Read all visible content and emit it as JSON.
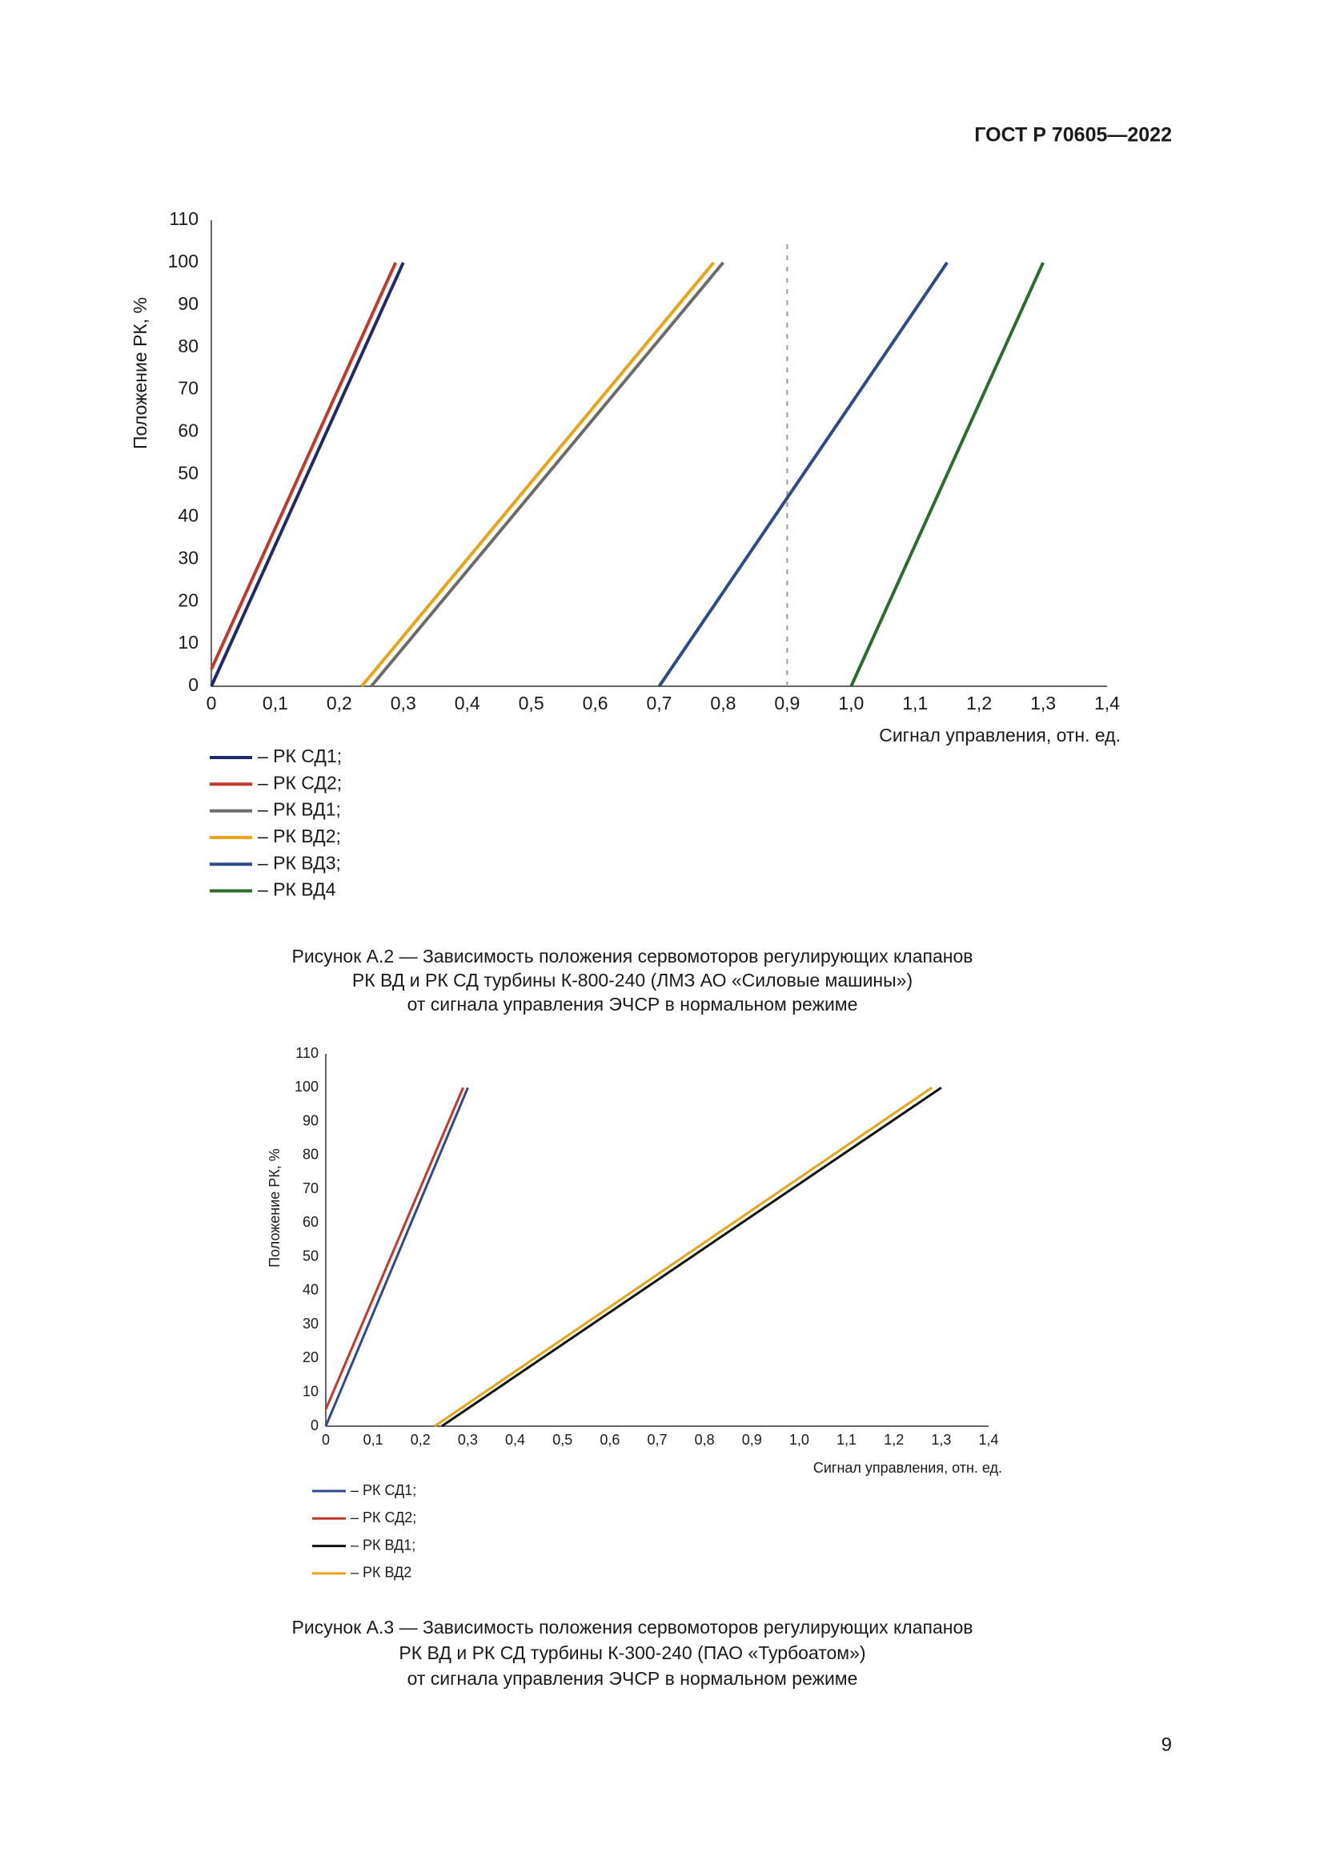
{
  "header": {
    "title": "ГОСТ Р 70605—2022"
  },
  "page_number": "9",
  "chart_data": [
    {
      "type": "line",
      "y_label": "Положение РК, %",
      "x_label": "Сигнал управления, отн. ед.",
      "xlim": [
        0,
        1.4
      ],
      "ylim": [
        0,
        110
      ],
      "xticks": [
        0,
        {
          "value": 0.1,
          "label": "0,1"
        },
        {
          "value": 0.2,
          "label": "0,2"
        },
        {
          "value": 0.3,
          "label": "0,3"
        },
        {
          "value": 0.4,
          "label": "0,4"
        },
        {
          "value": 0.5,
          "label": "0,5"
        },
        {
          "value": 0.6,
          "label": "0,6"
        },
        {
          "value": 0.7,
          "label": "0,7"
        },
        {
          "value": 0.8,
          "label": "0,8"
        },
        {
          "value": 0.9,
          "label": "0,9"
        },
        {
          "value": 1.0,
          "label": "1,0"
        },
        {
          "value": 1.1,
          "label": "1,1"
        },
        {
          "value": 1.2,
          "label": "1,2"
        },
        {
          "value": 1.3,
          "label": "1,3"
        },
        {
          "value": 1.4,
          "label": "1,4"
        }
      ],
      "yticks": [
        0,
        10,
        20,
        30,
        40,
        50,
        60,
        70,
        80,
        90,
        100,
        110
      ],
      "vline_x": 0.9,
      "series": [
        {
          "name": "– РК СД1;",
          "color": "#1f2a6b",
          "x": [
            0,
            0.3
          ],
          "values": [
            0,
            100
          ]
        },
        {
          "name": "– РК СД2;",
          "color": "#c0392b",
          "x": [
            0,
            0.288
          ],
          "values": [
            4,
            100
          ]
        },
        {
          "name": "– РК ВД1;",
          "color": "#6b6b6b",
          "x": [
            0.25,
            0.8
          ],
          "values": [
            0,
            100
          ]
        },
        {
          "name": "– РК ВД2;",
          "color": "#e8a317",
          "x": [
            0.235,
            0.785
          ],
          "values": [
            0,
            100
          ]
        },
        {
          "name": "– РК ВД3;",
          "color": "#2e4a8a",
          "x": [
            0.7,
            1.15
          ],
          "values": [
            0,
            100
          ]
        },
        {
          "name": "– РК ВД4",
          "color": "#2e6b2e",
          "x": [
            1.0,
            1.3
          ],
          "values": [
            0,
            100
          ]
        }
      ],
      "caption": [
        "Рисунок А.2 — Зависимость положения сервомоторов регулирующих клапанов",
        "РК ВД и РК СД турбины К-800-240 (ЛМЗ АО «Силовые машины»)",
        "от сигнала управления ЭЧСР в нормальном режиме"
      ]
    },
    {
      "type": "line",
      "y_label": "Положение РК, %",
      "x_label": "Сигнал управления, отн. ед.",
      "xlim": [
        0,
        1.4
      ],
      "ylim": [
        0,
        110
      ],
      "xticks": [
        0,
        {
          "value": 0.1,
          "label": "0,1"
        },
        {
          "value": 0.2,
          "label": "0,2"
        },
        {
          "value": 0.3,
          "label": "0,3"
        },
        {
          "value": 0.4,
          "label": "0,4"
        },
        {
          "value": 0.5,
          "label": "0,5"
        },
        {
          "value": 0.6,
          "label": "0,6"
        },
        {
          "value": 0.7,
          "label": "0,7"
        },
        {
          "value": 0.8,
          "label": "0,8"
        },
        {
          "value": 0.9,
          "label": "0,9"
        },
        {
          "value": 1.0,
          "label": "1,0"
        },
        {
          "value": 1.1,
          "label": "1,1"
        },
        {
          "value": 1.2,
          "label": "1,2"
        },
        {
          "value": 1.3,
          "label": "1,3"
        },
        {
          "value": 1.4,
          "label": "1,4"
        }
      ],
      "yticks": [
        0,
        10,
        20,
        30,
        40,
        50,
        60,
        70,
        80,
        90,
        100,
        110
      ],
      "series": [
        {
          "name": "– РК СД1;",
          "color": "#2e4a8a",
          "x": [
            0,
            0.3
          ],
          "values": [
            0,
            100
          ]
        },
        {
          "name": "– РК СД2;",
          "color": "#c0392b",
          "x": [
            0,
            0.29
          ],
          "values": [
            5,
            100
          ]
        },
        {
          "name": "– РК ВД1;",
          "color": "#111111",
          "x": [
            0.245,
            1.3
          ],
          "values": [
            0,
            100
          ]
        },
        {
          "name": "– РК ВД2",
          "color": "#e8a317",
          "x": [
            0.23,
            1.28
          ],
          "values": [
            0,
            100
          ]
        }
      ],
      "caption": [
        "Рисунок А.3 — Зависимость положения сервомоторов регулирующих клапанов",
        "РК ВД и РК СД турбины К-300-240 (ПАО «Турбоатом»)",
        "от сигнала управления ЭЧСР в нормальном режиме"
      ]
    }
  ]
}
